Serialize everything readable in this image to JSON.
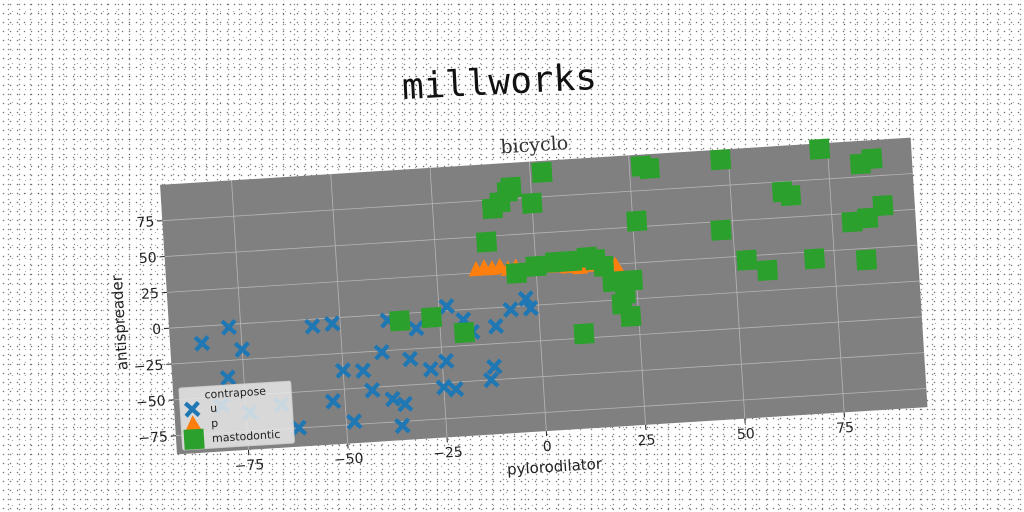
{
  "chart_data": {
    "type": "scatter",
    "suptitle": "millworks",
    "title": "bicyclo",
    "xlabel": "pylorodilator",
    "ylabel": "antispreader",
    "xlim": [
      -93,
      96
    ],
    "ylim": [
      -88,
      100
    ],
    "xticks": [
      -75,
      -50,
      -25,
      0,
      25,
      50,
      75
    ],
    "yticks": [
      -75,
      -50,
      -25,
      0,
      25,
      50,
      75
    ],
    "grid": true,
    "legend": {
      "title": "contrapose",
      "placement": "lower-left"
    },
    "colors": {
      "plot_bg": "#808080",
      "grid": "#b5b5b5"
    },
    "series": [
      {
        "name": "u",
        "marker": "x-cross",
        "color": "#1f77b4",
        "points": [
          [
            -85,
            -12
          ],
          [
            -78,
            -2
          ],
          [
            -75,
            -18
          ],
          [
            -79,
            -37
          ],
          [
            -81,
            -56
          ],
          [
            -74,
            -62
          ],
          [
            -66,
            -58
          ],
          [
            -62,
            -75
          ],
          [
            -57,
            -5
          ],
          [
            -52,
            -4
          ],
          [
            -50,
            -37
          ],
          [
            -45,
            -38
          ],
          [
            -53,
            -58
          ],
          [
            -48,
            -73
          ],
          [
            -43,
            -52
          ],
          [
            -38,
            -59
          ],
          [
            -35,
            -63
          ],
          [
            -36,
            -78
          ],
          [
            -40,
            -26
          ],
          [
            -33,
            -32
          ],
          [
            -38,
            -4
          ],
          [
            -31,
            -11
          ],
          [
            -28,
            -40
          ],
          [
            -25,
            -53
          ],
          [
            -22,
            -55
          ],
          [
            -24,
            -35
          ],
          [
            -19,
            -7
          ],
          [
            -17,
            -16
          ],
          [
            -12,
            -41
          ],
          [
            -13,
            -50
          ],
          [
            -11,
            -13
          ],
          [
            -7,
            -2
          ],
          [
            -2,
            -2
          ],
          [
            -23,
            3
          ],
          [
            -3,
            5
          ]
        ]
      },
      {
        "name": "p",
        "marker": "triangle",
        "color": "#ff7f0e",
        "points": [
          [
            -15,
            27
          ],
          [
            -13,
            28
          ],
          [
            -11,
            27
          ],
          [
            -9,
            28
          ],
          [
            -7,
            26
          ],
          [
            -5,
            27
          ],
          [
            -1,
            26
          ],
          [
            2,
            27
          ],
          [
            5,
            26
          ],
          [
            8,
            25
          ],
          [
            11,
            24
          ],
          [
            14,
            25
          ],
          [
            16,
            26
          ],
          [
            18,
            24
          ],
          [
            20,
            24
          ]
        ]
      },
      {
        "name": "mastodontic",
        "marker": "square",
        "color": "#2ca02c",
        "points": [
          [
            -35,
            -5
          ],
          [
            -27,
            -4
          ],
          [
            -19,
            -16
          ],
          [
            -12,
            46
          ],
          [
            -10,
            69
          ],
          [
            -8,
            73
          ],
          [
            -6,
            80
          ],
          [
            -5,
            83
          ],
          [
            0,
            71
          ],
          [
            -5,
            23
          ],
          [
            0,
            27
          ],
          [
            3,
            92
          ],
          [
            5,
            29
          ],
          [
            9,
            29
          ],
          [
            11,
            -22
          ],
          [
            13,
            31
          ],
          [
            15,
            29
          ],
          [
            17,
            24
          ],
          [
            19,
            13
          ],
          [
            21,
            -3
          ],
          [
            22,
            4
          ],
          [
            23,
            -12
          ],
          [
            24,
            13
          ],
          [
            26,
            54
          ],
          [
            28,
            92
          ],
          [
            30,
            90
          ],
          [
            47,
            44
          ],
          [
            53,
            22
          ],
          [
            58,
            14
          ],
          [
            63,
            68
          ],
          [
            65,
            65
          ],
          [
            70,
            20
          ],
          [
            73,
            96
          ],
          [
            80,
            44
          ],
          [
            84,
            46
          ],
          [
            83,
            84
          ],
          [
            86,
            87
          ],
          [
            83,
            17
          ],
          [
            88,
            54
          ],
          [
            48,
            93
          ]
        ]
      }
    ]
  }
}
